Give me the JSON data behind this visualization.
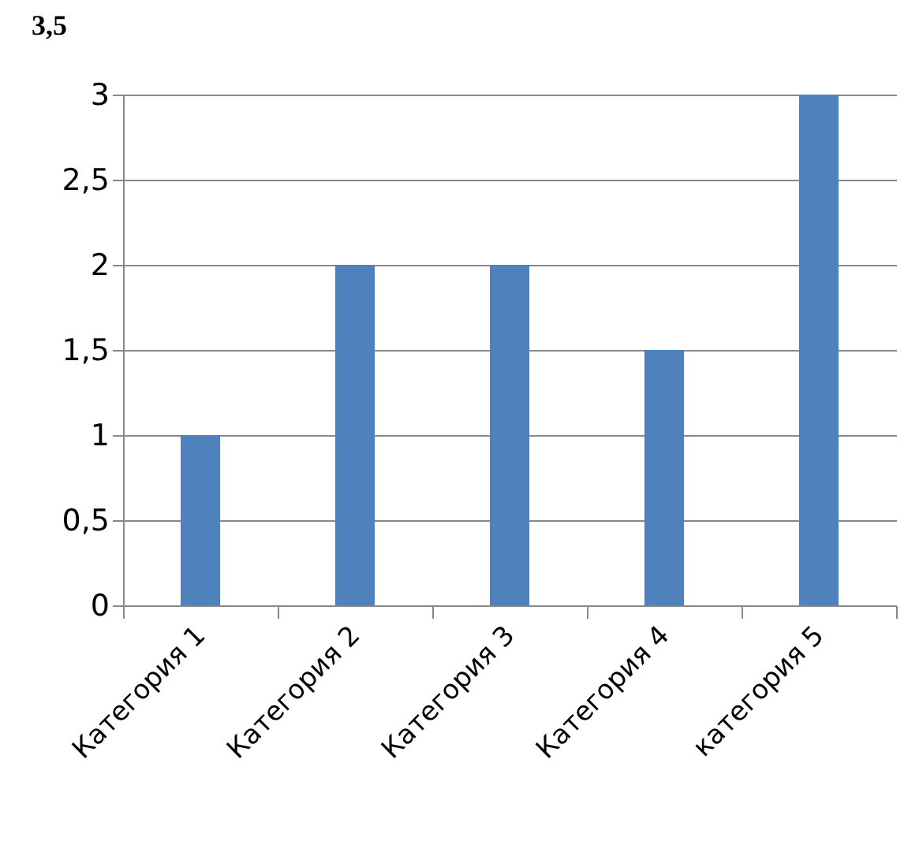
{
  "chart_data": {
    "type": "bar",
    "title": "3,5",
    "categories": [
      "Категория 1",
      "Категория 2",
      "Категория 3",
      "Категория 4",
      "категория 5"
    ],
    "values": [
      1,
      2,
      2,
      1.5,
      3
    ],
    "color": "#4f81bd",
    "ylim": [
      0,
      3
    ],
    "yticks": [
      0,
      {
        "value": 0.5,
        "label": "0,5"
      },
      1,
      {
        "value": 1.5,
        "label": "1,5"
      },
      2,
      {
        "value": 2.5,
        "label": "2,5"
      },
      3
    ],
    "grid": "y"
  }
}
